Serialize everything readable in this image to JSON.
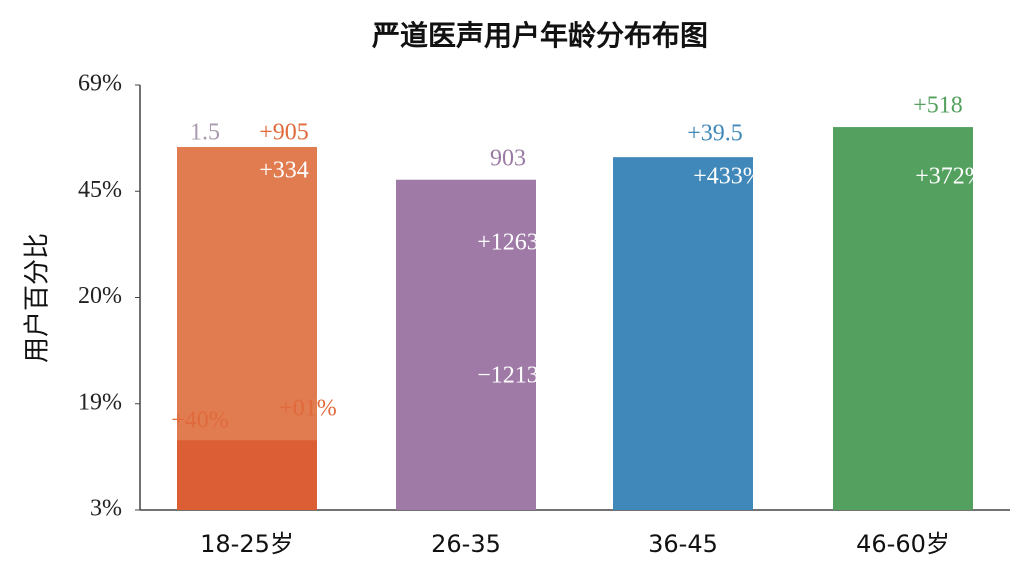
{
  "chart_data": {
    "type": "bar",
    "title": "严道医声用户年龄分布布图",
    "y_label": "用户百分比",
    "categories": [
      "18-25岁",
      "26-35",
      "36-45",
      "46-60岁"
    ],
    "values": [
      55.0,
      47.6,
      52.7,
      59.5
    ],
    "colors": [
      "#e17c50",
      "#a07aa7",
      "#3f88b9",
      "#54a15f"
    ],
    "base_values": [
      13.5,
      null,
      null,
      null
    ],
    "base_color": "#db5e34",
    "ylim": [
      3,
      69
    ],
    "yticks": [
      {
        "value": 3,
        "label": "3%"
      },
      {
        "value": 19,
        "label": "19%"
      },
      {
        "value": 20,
        "label": "20%"
      },
      {
        "value": 45,
        "label": "45%"
      },
      {
        "value": 69,
        "label": "69%"
      }
    ],
    "annotations": [
      {
        "text": "1.5",
        "color": "#a99aae"
      },
      {
        "text": "+905",
        "color": "#e06a3c"
      },
      {
        "text": "+334",
        "color": "#ffffff"
      },
      {
        "text": "+40%",
        "color": "#e06a3c"
      },
      {
        "text": "+01%",
        "color": "#e06a3c"
      },
      {
        "text": "903",
        "color": "#9a79a3"
      },
      {
        "text": "+1263",
        "color": "#ffffff"
      },
      {
        "text": "−1213",
        "color": "#ffffff"
      },
      {
        "text": "+39.5",
        "color": "#3f88b9"
      },
      {
        "text": "+433%",
        "color": "#ffffff"
      },
      {
        "text": "+518",
        "color": "#54a15f"
      },
      {
        "text": "+372%",
        "color": "#ffffff"
      }
    ]
  }
}
